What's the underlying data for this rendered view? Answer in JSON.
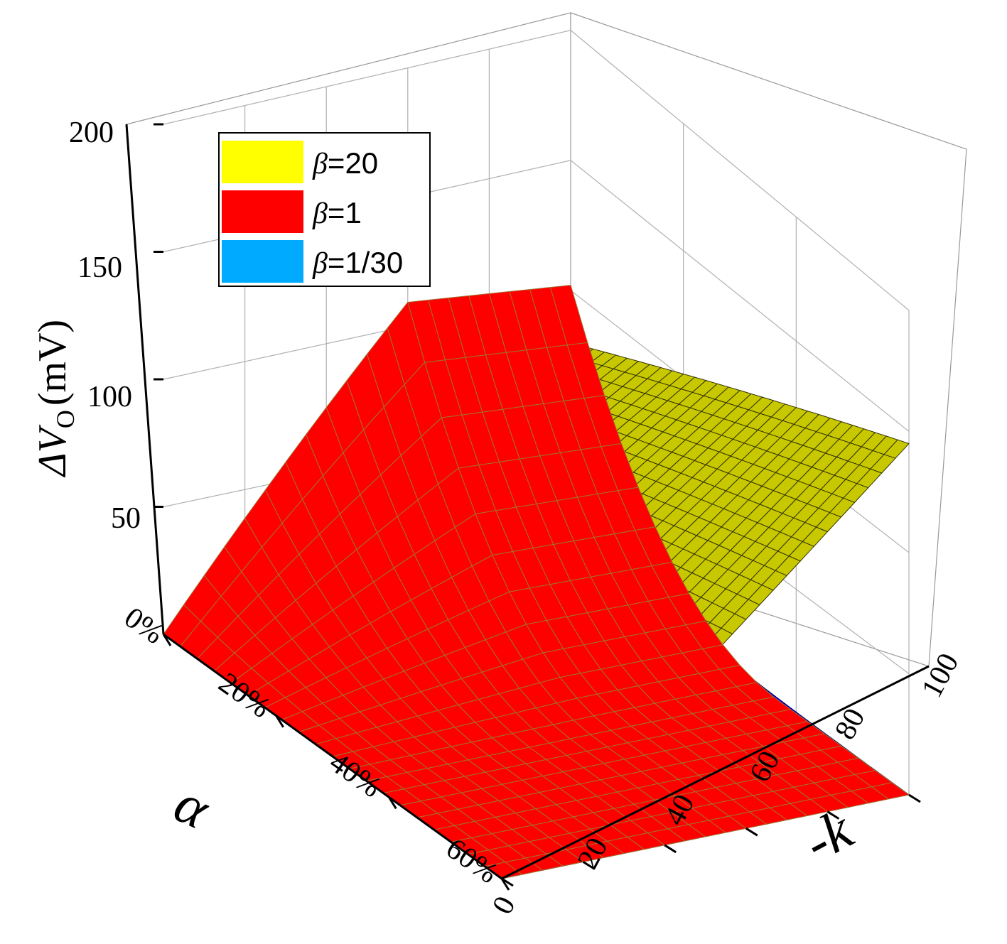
{
  "chart_data": {
    "type": "surface3d",
    "zlabel": "ΔV",
    "zlabel_sub": "O",
    "zlabel_unit": "(mV)",
    "xlabel": "α",
    "ylabel": "-k",
    "zlim": [
      0,
      200
    ],
    "z_ticks": [
      "200",
      "150",
      "100",
      "50"
    ],
    "x_ticks": [
      "0%",
      "20%",
      "40%",
      "60%"
    ],
    "y_ticks": [
      "0",
      "20",
      "40",
      "60",
      "80",
      "100"
    ],
    "grid": true,
    "legend_position": "top-left",
    "legend": [
      {
        "symbol": "β",
        "text": "=20",
        "color": "#ffff00"
      },
      {
        "symbol": "β",
        "text": "=1",
        "color": "#ff0000"
      },
      {
        "symbol": "β",
        "text": "=1/30",
        "color": "#00aaff"
      }
    ],
    "series": [
      {
        "name": "β=20",
        "alpha_range": [
          0,
          0.6
        ],
        "k_range": [
          0,
          100
        ],
        "z_corner_max": 145,
        "color": "#c8c800"
      },
      {
        "name": "β=1",
        "alpha_range": [
          0,
          0.6
        ],
        "k_range": [
          0,
          100
        ],
        "z_peak": 120,
        "color": "#ff0000"
      },
      {
        "name": "β=1/30",
        "alpha_range": [
          0,
          0.6
        ],
        "k_range": [
          0,
          100
        ],
        "z_max": 30,
        "color": "#0000ff",
        "underside_color": "#00aaff"
      }
    ]
  }
}
